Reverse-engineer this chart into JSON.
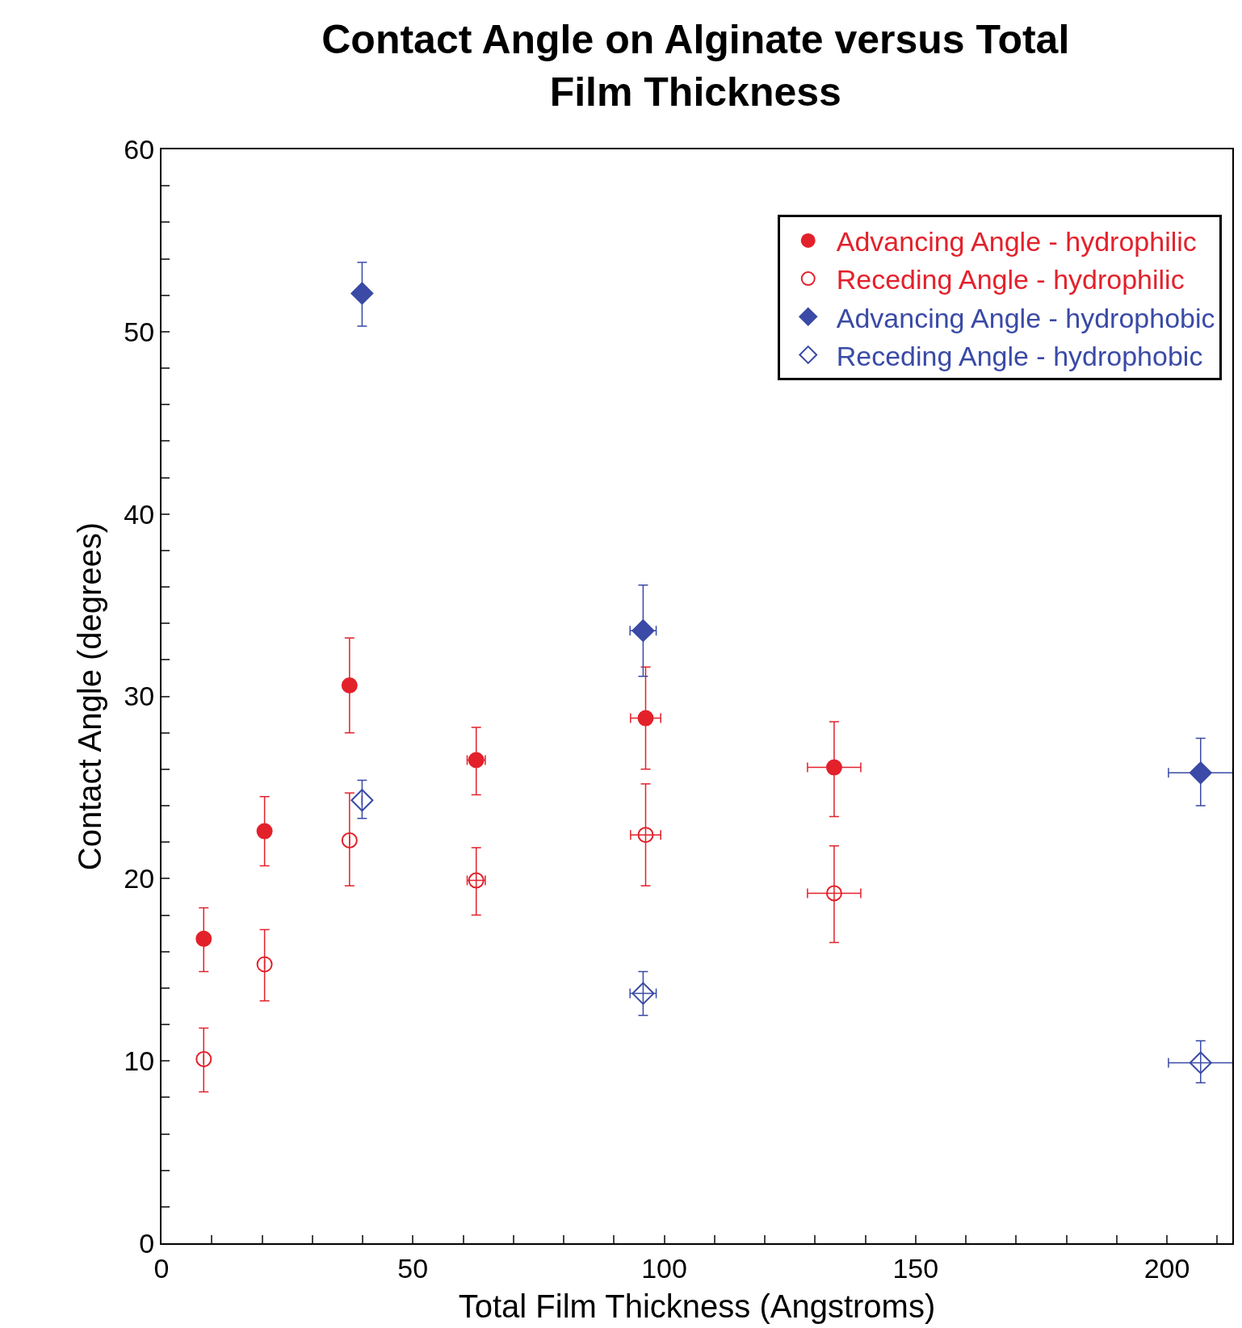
{
  "chart_data": {
    "type": "scatter",
    "title": "Contact Angle on Alginate versus Total Film Thickness",
    "xlabel": "Total Film Thickness (Angstroms)",
    "ylabel": "Contact Angle (degrees)",
    "xlim": [
      0,
      213
    ],
    "ylim": [
      0,
      60
    ],
    "xticks": [
      0,
      {
        "value": 10,
        "label": null
      },
      {
        "value": 20,
        "label": null
      },
      {
        "value": 30,
        "label": null
      },
      {
        "value": 40,
        "label": null
      },
      50,
      {
        "value": 60,
        "label": null
      },
      {
        "value": 70,
        "label": null
      },
      {
        "value": 80,
        "label": null
      },
      {
        "value": 90,
        "label": null
      },
      100,
      {
        "value": 110,
        "label": null
      },
      {
        "value": 120,
        "label": null
      },
      {
        "value": 130,
        "label": null
      },
      {
        "value": 140,
        "label": null
      },
      150,
      {
        "value": 160,
        "label": null
      },
      {
        "value": 170,
        "label": null
      },
      {
        "value": 180,
        "label": null
      },
      {
        "value": 190,
        "label": null
      },
      200,
      {
        "value": 210,
        "label": null
      }
    ],
    "yticks": [
      0,
      {
        "value": 2,
        "label": null
      },
      {
        "value": 4,
        "label": null
      },
      {
        "value": 6,
        "label": null
      },
      {
        "value": 8,
        "label": null
      },
      10,
      {
        "value": 12,
        "label": null
      },
      {
        "value": 14,
        "label": null
      },
      {
        "value": 16,
        "label": null
      },
      {
        "value": 18,
        "label": null
      },
      20,
      {
        "value": 22,
        "label": null
      },
      {
        "value": 24,
        "label": null
      },
      {
        "value": 26,
        "label": null
      },
      {
        "value": 28,
        "label": null
      },
      30,
      {
        "value": 32,
        "label": null
      },
      {
        "value": 34,
        "label": null
      },
      {
        "value": 36,
        "label": null
      },
      {
        "value": 38,
        "label": null
      },
      40,
      {
        "value": 42,
        "label": null
      },
      {
        "value": 44,
        "label": null
      },
      {
        "value": 46,
        "label": null
      },
      {
        "value": 48,
        "label": null
      },
      50,
      {
        "value": 52,
        "label": null
      },
      {
        "value": 54,
        "label": null
      },
      {
        "value": 56,
        "label": null
      },
      {
        "value": 58,
        "label": null
      },
      60
    ],
    "legend": "top right",
    "series": [
      {
        "name": "Advancing Angle - hydrophilic",
        "color": "#e3212b",
        "marker": "circle",
        "x": [
          8.4,
          20.5,
          37.4,
          62.6,
          96.3,
          133.8
        ],
        "values": [
          16.7,
          22.6,
          30.6,
          26.5,
          28.8,
          26.1
        ],
        "errors": [
          [
            14.9,
            18.4
          ],
          [
            20.7,
            24.5
          ],
          [
            28.0,
            33.2
          ],
          [
            24.6,
            28.3
          ],
          [
            26.0,
            31.6
          ],
          [
            23.4,
            28.6
          ]
        ],
        "xerrors": [
          null,
          null,
          null,
          1.8,
          3,
          5.3
        ]
      },
      {
        "name": "Receding Angle - hydrophilic",
        "color": "#e3212b",
        "marker": "circle-open",
        "x": [
          8.4,
          20.5,
          37.4,
          62.6,
          96.3,
          133.8
        ],
        "values": [
          10.1,
          15.3,
          22.1,
          19.9,
          22.4,
          19.2
        ],
        "errors": [
          [
            8.3,
            11.8
          ],
          [
            13.3,
            17.2
          ],
          [
            19.6,
            24.7
          ],
          [
            18.0,
            21.7
          ],
          [
            19.6,
            25.2
          ],
          [
            16.5,
            21.8
          ]
        ],
        "xerrors": [
          null,
          null,
          null,
          1.8,
          3,
          5.3
        ]
      },
      {
        "name": "Advancing Angle - hydrophobic",
        "color": "#3a4aa6",
        "marker": "diamond",
        "x": [
          39.9,
          95.8,
          206.7
        ],
        "values": [
          52.1,
          33.6,
          25.8
        ],
        "errors": [
          [
            50.3,
            53.8
          ],
          [
            31.1,
            36.1
          ],
          [
            24.0,
            27.7
          ]
        ],
        "xerrors": [
          null,
          2.6,
          6.4
        ]
      },
      {
        "name": "Receding Angle - hydrophobic",
        "color": "#3a4aa6",
        "marker": "diamond-open",
        "x": [
          39.9,
          95.8,
          206.7
        ],
        "values": [
          24.3,
          13.7,
          9.9
        ],
        "errors": [
          [
            23.3,
            25.4
          ],
          [
            12.5,
            14.9
          ],
          [
            8.8,
            11.1
          ]
        ],
        "xerrors": [
          null,
          2.6,
          6.4
        ]
      }
    ]
  }
}
